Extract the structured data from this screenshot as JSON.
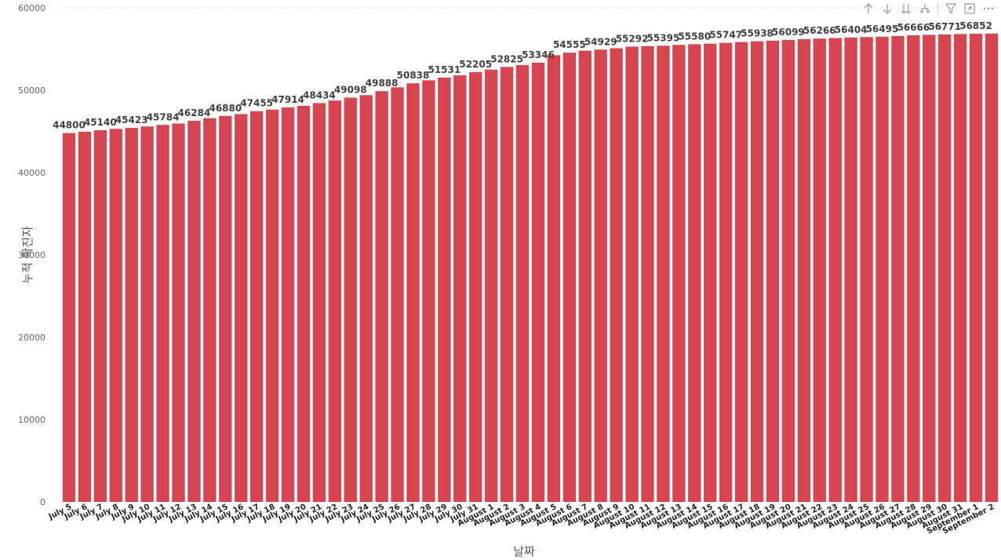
{
  "colors": {
    "bar": "#d64550",
    "axis_text": "#666666",
    "label_text": "#404040",
    "grid": "#c8c8c8",
    "icon": "#9a9a9a"
  },
  "toolbar": {
    "icons": [
      "arrow-up-icon",
      "arrow-down-icon",
      "double-arrow-down-icon",
      "expand-hierarchy-icon",
      "filter-icon",
      "focus-mode-icon",
      "more-options-icon"
    ]
  },
  "chart_data": {
    "type": "bar",
    "title": "",
    "xlabel": "날짜",
    "ylabel": "누적 확진자",
    "ylim": [
      0,
      60000
    ],
    "yticks": [
      0,
      10000,
      20000,
      30000,
      40000,
      50000,
      60000
    ],
    "grid": "dotted horizontal line at top only",
    "categories": [
      "July 5",
      "July 6",
      "July 7",
      "July 8",
      "July 9",
      "July 10",
      "July 11",
      "July 12",
      "July 13",
      "July 14",
      "July 15",
      "July 16",
      "July 17",
      "July 18",
      "July 19",
      "July 20",
      "July 21",
      "July 22",
      "July 23",
      "July 24",
      "July 25",
      "July 26",
      "July 27",
      "July 28",
      "July 29",
      "July 30",
      "July 31",
      "August 1",
      "August 2",
      "August 3",
      "August 4",
      "August 5",
      "August 6",
      "August 7",
      "August 8",
      "August 9",
      "August 10",
      "August 11",
      "August 12",
      "August 13",
      "August 14",
      "August 15",
      "August 16",
      "August 17",
      "August 18",
      "August 19",
      "August 20",
      "August 21",
      "August 22",
      "August 23",
      "August 24",
      "August 25",
      "August 26",
      "August 27",
      "August 28",
      "August 29",
      "August 30",
      "August 31",
      "September 1",
      "September 2"
    ],
    "values": [
      44800,
      44950,
      45140,
      45300,
      45423,
      45600,
      45784,
      45950,
      46284,
      46600,
      46880,
      47100,
      47455,
      47650,
      47914,
      48100,
      48434,
      48750,
      49098,
      49400,
      49888,
      50350,
      50838,
      51200,
      51531,
      51800,
      52205,
      52500,
      52825,
      53050,
      53346,
      54250,
      54555,
      54800,
      54929,
      55100,
      55292,
      55350,
      55395,
      55500,
      55580,
      55650,
      55747,
      55850,
      55938,
      56020,
      56099,
      56200,
      56266,
      56330,
      56404,
      56450,
      56495,
      56580,
      56666,
      56720,
      56771,
      56820,
      56852,
      56880
    ],
    "data_labels": [
      {
        "i": 0,
        "text": "44800"
      },
      {
        "i": 2,
        "text": "45140"
      },
      {
        "i": 4,
        "text": "45423"
      },
      {
        "i": 6,
        "text": "45784"
      },
      {
        "i": 8,
        "text": "46284"
      },
      {
        "i": 10,
        "text": "46880"
      },
      {
        "i": 12,
        "text": "47455"
      },
      {
        "i": 14,
        "text": "47914"
      },
      {
        "i": 16,
        "text": "48434"
      },
      {
        "i": 18,
        "text": "49098"
      },
      {
        "i": 20,
        "text": "49888"
      },
      {
        "i": 22,
        "text": "50838"
      },
      {
        "i": 24,
        "text": "51531"
      },
      {
        "i": 26,
        "text": "52205"
      },
      {
        "i": 28,
        "text": "52825"
      },
      {
        "i": 30,
        "text": "53346"
      },
      {
        "i": 32,
        "text": "54555"
      },
      {
        "i": 34,
        "text": "54929"
      },
      {
        "i": 36,
        "text": "55292"
      },
      {
        "i": 38,
        "text": "55395"
      },
      {
        "i": 40,
        "text": "55580"
      },
      {
        "i": 42,
        "text": "55747"
      },
      {
        "i": 44,
        "text": "55938"
      },
      {
        "i": 46,
        "text": "56099"
      },
      {
        "i": 48,
        "text": "56266"
      },
      {
        "i": 50,
        "text": "56404"
      },
      {
        "i": 52,
        "text": "56495"
      },
      {
        "i": 54,
        "text": "56666"
      },
      {
        "i": 56,
        "text": "56771"
      },
      {
        "i": 58,
        "text": "56852"
      }
    ]
  }
}
